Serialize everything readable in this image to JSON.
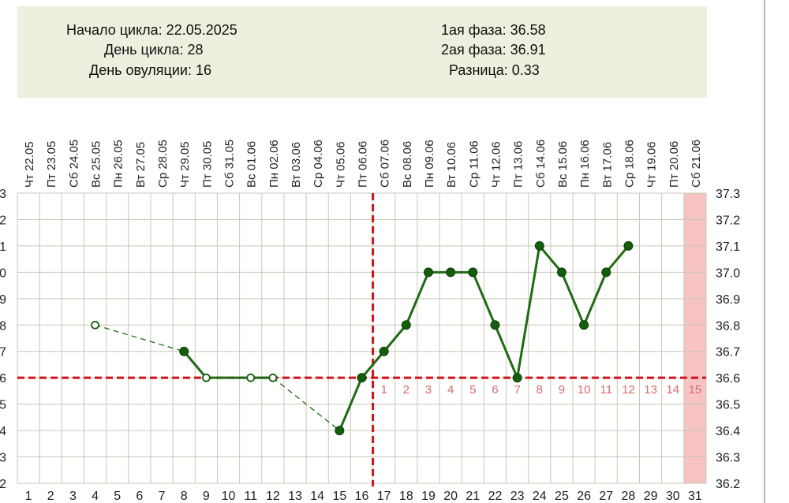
{
  "info": {
    "cycle_start": "Начало цикла: 22.05.2025",
    "cycle_day": "День цикла: 28",
    "ovulation_day": "День овуляции: 16",
    "phase1": "1ая фаза: 36.58",
    "phase2": "2ая фаза: 36.91",
    "difference": "Разница: 0.33"
  },
  "chart_data": {
    "type": "line",
    "title": "",
    "xlabel": "",
    "ylabel": "",
    "ylim": [
      36.2,
      37.3
    ],
    "y_ticks": [
      "37.3",
      "37.2",
      "37.1",
      "37.0",
      "36.9",
      "36.8",
      "36.7",
      "36.6",
      "36.5",
      "36.4",
      "36.3",
      "36.2"
    ],
    "left_y_ticks_visible": [
      "3",
      "2",
      "1",
      "0",
      "9",
      "8",
      "7",
      "6",
      "5",
      "4",
      "3",
      "2"
    ],
    "cycle_days": [
      1,
      2,
      3,
      4,
      5,
      6,
      7,
      8,
      9,
      10,
      11,
      12,
      13,
      14,
      15,
      16,
      17,
      18,
      19,
      20,
      21,
      22,
      23,
      24,
      25,
      26,
      27,
      28,
      29,
      30,
      31
    ],
    "dates": [
      "22.05",
      "23.05",
      "24.05",
      "25.05",
      "26.05",
      "27.05",
      "28.05",
      "29.05",
      "30.05",
      "31.05",
      "01.06",
      "02.06",
      "03.06",
      "04.06",
      "05.06",
      "06.06",
      "07.06",
      "08.06",
      "09.06",
      "10.06",
      "11.06",
      "12.06",
      "13.06",
      "14.06",
      "15.06",
      "16.06",
      "17.06",
      "18.06",
      "19.06",
      "20.06",
      "21.06"
    ],
    "weekdays": [
      "Чт",
      "Пт",
      "Сб",
      "Вс",
      "Пн",
      "Вт",
      "Ср",
      "Чт",
      "Пт",
      "Сб",
      "Вс",
      "Пн",
      "Вт",
      "Ср",
      "Чт",
      "Пт",
      "Сб",
      "Вс",
      "Пн",
      "Вт",
      "Ср",
      "Чт",
      "Пт",
      "Сб",
      "Вс",
      "Пн",
      "Вт",
      "Ср",
      "Чт",
      "Пт",
      "Сб"
    ],
    "points": [
      {
        "day": 4,
        "temp": 36.8,
        "marker": "hollow"
      },
      {
        "day": 8,
        "temp": 36.7,
        "marker": "filled"
      },
      {
        "day": 9,
        "temp": 36.6,
        "marker": "hollow"
      },
      {
        "day": 11,
        "temp": 36.6,
        "marker": "hollow"
      },
      {
        "day": 12,
        "temp": 36.6,
        "marker": "hollow"
      },
      {
        "day": 15,
        "temp": 36.4,
        "marker": "filled"
      },
      {
        "day": 16,
        "temp": 36.6,
        "marker": "filled"
      },
      {
        "day": 17,
        "temp": 36.7,
        "marker": "filled"
      },
      {
        "day": 18,
        "temp": 36.8,
        "marker": "filled"
      },
      {
        "day": 19,
        "temp": 37.0,
        "marker": "filled"
      },
      {
        "day": 20,
        "temp": 37.0,
        "marker": "filled"
      },
      {
        "day": 21,
        "temp": 37.0,
        "marker": "filled"
      },
      {
        "day": 22,
        "temp": 36.8,
        "marker": "filled"
      },
      {
        "day": 23,
        "temp": 36.6,
        "marker": "filled"
      },
      {
        "day": 24,
        "temp": 37.1,
        "marker": "filled"
      },
      {
        "day": 25,
        "temp": 37.0,
        "marker": "filled"
      },
      {
        "day": 26,
        "temp": 36.8,
        "marker": "filled"
      },
      {
        "day": 27,
        "temp": 37.0,
        "marker": "filled"
      },
      {
        "day": 28,
        "temp": 37.1,
        "marker": "filled"
      }
    ],
    "segments": [
      {
        "from": 4,
        "to": 8,
        "style": "dashed"
      },
      {
        "from": 8,
        "to": 9,
        "style": "solid"
      },
      {
        "from": 9,
        "to": 12,
        "style": "solid"
      },
      {
        "from": 12,
        "to": 15,
        "style": "dashed"
      },
      {
        "from": 15,
        "to": 28,
        "style": "solid"
      }
    ],
    "coverline_temp": 36.6,
    "ovulation_day": 16,
    "luteal_day_labels": [
      {
        "day": 17,
        "label": "1"
      },
      {
        "day": 18,
        "label": "2"
      },
      {
        "day": 19,
        "label": "3"
      },
      {
        "day": 20,
        "label": "4"
      },
      {
        "day": 21,
        "label": "5"
      },
      {
        "day": 22,
        "label": "6"
      },
      {
        "day": 23,
        "label": "7"
      },
      {
        "day": 24,
        "label": "8"
      },
      {
        "day": 25,
        "label": "9"
      },
      {
        "day": 26,
        "label": "10"
      },
      {
        "day": 27,
        "label": "11"
      },
      {
        "day": 28,
        "label": "12"
      },
      {
        "day": 29,
        "label": "13"
      },
      {
        "day": 30,
        "label": "14"
      },
      {
        "day": 31,
        "label": "15"
      }
    ],
    "highlight_day": 31,
    "grid": true,
    "legend": "none",
    "colors": {
      "line": "#1e6b12",
      "marker": "#155d0c",
      "coverline": "#d0121b",
      "luteal_labels": "#d96b6b",
      "highlight": "#f7c3c3",
      "grid": "#c8c8b8"
    }
  }
}
